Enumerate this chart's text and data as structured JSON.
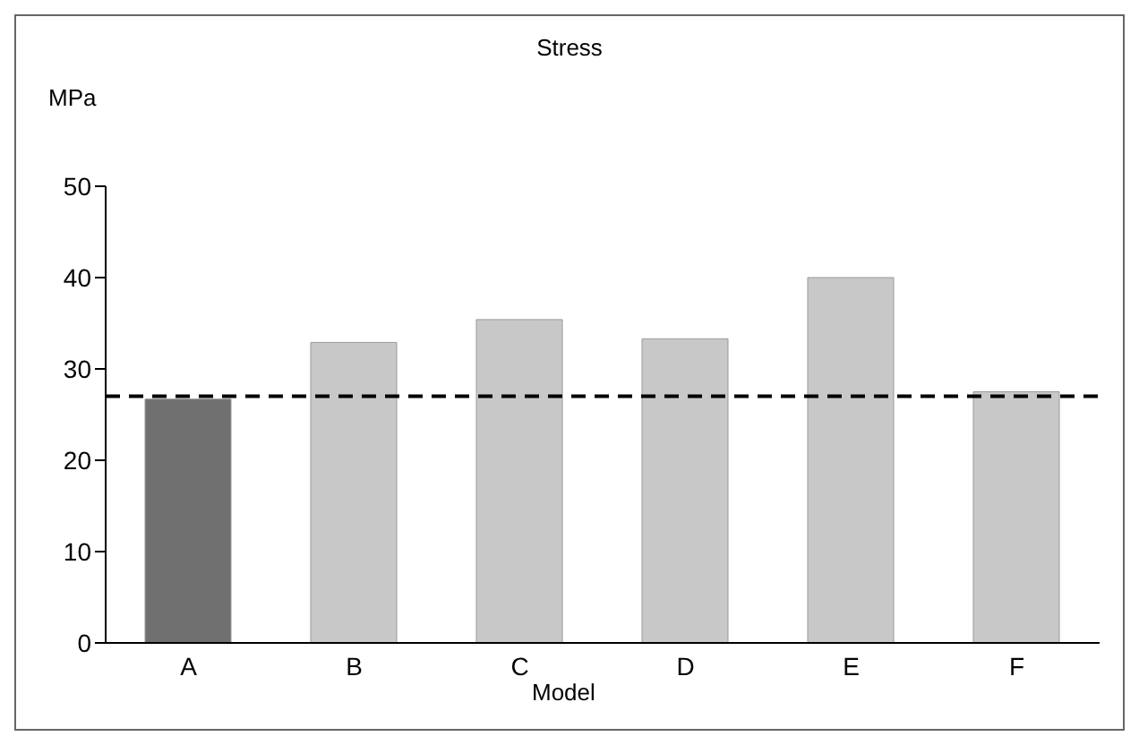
{
  "chart_data": {
    "type": "bar",
    "title": "Stress",
    "xlabel": "Model",
    "ylabel": "MPa",
    "categories": [
      "A",
      "B",
      "C",
      "D",
      "E",
      "F"
    ],
    "values": [
      26.7,
      32.9,
      35.4,
      33.3,
      40,
      27.5
    ],
    "colors": [
      "#707070",
      "#c8c8c8",
      "#c8c8c8",
      "#c8c8c8",
      "#c8c8c8",
      "#c8c8c8"
    ],
    "ylim": [
      0,
      50
    ],
    "yticks": [
      0,
      10,
      20,
      30,
      40,
      50
    ],
    "grid": false,
    "legend": false,
    "ref_lines": [
      {
        "axis": "y",
        "value": 27,
        "color": "#000000",
        "line_style": "dashed"
      }
    ]
  }
}
